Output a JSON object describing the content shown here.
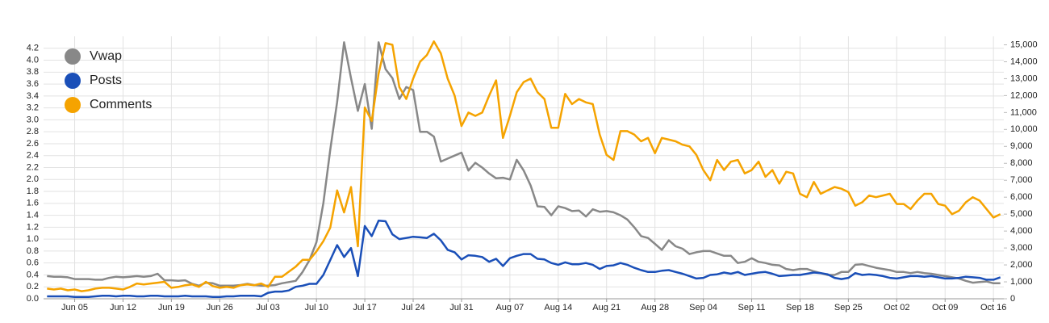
{
  "chart_data": {
    "type": "line",
    "categories": [
      null,
      null,
      null,
      null,
      "Jun 05",
      null,
      null,
      null,
      null,
      null,
      null,
      "Jun 12",
      null,
      null,
      null,
      null,
      null,
      null,
      "Jun 19",
      null,
      null,
      null,
      null,
      null,
      null,
      "Jun 26",
      null,
      null,
      null,
      null,
      null,
      null,
      "Jul 03",
      null,
      null,
      null,
      null,
      null,
      null,
      "Jul 10",
      null,
      null,
      null,
      null,
      null,
      null,
      "Jul 17",
      null,
      null,
      null,
      null,
      null,
      null,
      "Jul 24",
      null,
      null,
      null,
      null,
      null,
      null,
      "Jul 31",
      null,
      null,
      null,
      null,
      null,
      null,
      "Aug 07",
      null,
      null,
      null,
      null,
      null,
      null,
      "Aug 14",
      null,
      null,
      null,
      null,
      null,
      null,
      "Aug 21",
      null,
      null,
      null,
      null,
      null,
      null,
      "Aug 28",
      null,
      null,
      null,
      null,
      null,
      null,
      "Sep 04",
      null,
      null,
      null,
      null,
      null,
      null,
      "Sep 11",
      null,
      null,
      null,
      null,
      null,
      null,
      "Sep 18",
      null,
      null,
      null,
      null,
      null,
      null,
      "Sep 25",
      null,
      null,
      null,
      null,
      null,
      null,
      "Oct 02",
      null,
      null,
      null,
      null,
      null,
      null,
      "Oct 09",
      null,
      null,
      null,
      null,
      null,
      null,
      "Oct 16",
      null
    ],
    "series": [
      {
        "name": "Vwap",
        "color": "#888888",
        "values": [
          0.38,
          0.37,
          0.37,
          0.36,
          0.33,
          0.33,
          0.33,
          0.32,
          0.32,
          0.35,
          0.37,
          0.36,
          0.37,
          0.38,
          0.37,
          0.38,
          0.42,
          0.31,
          0.31,
          0.3,
          0.31,
          0.25,
          0.22,
          0.27,
          0.26,
          0.22,
          0.22,
          0.22,
          0.23,
          0.25,
          0.23,
          0.22,
          0.22,
          0.23,
          0.26,
          0.28,
          0.3,
          0.45,
          0.65,
          0.95,
          1.6,
          2.5,
          3.3,
          4.3,
          3.7,
          3.15,
          3.6,
          2.85,
          4.3,
          3.85,
          3.7,
          3.35,
          3.55,
          3.5,
          2.8,
          2.8,
          2.72,
          2.3,
          2.35,
          2.4,
          2.45,
          2.15,
          2.28,
          2.2,
          2.1,
          2.02,
          2.03,
          2.0,
          2.33,
          2.15,
          1.9,
          1.55,
          1.54,
          1.4,
          1.55,
          1.52,
          1.47,
          1.48,
          1.38,
          1.5,
          1.46,
          1.47,
          1.45,
          1.4,
          1.33,
          1.2,
          1.05,
          1.02,
          0.92,
          0.82,
          0.98,
          0.88,
          0.84,
          0.75,
          0.78,
          0.8,
          0.8,
          0.76,
          0.72,
          0.72,
          0.6,
          0.62,
          0.68,
          0.62,
          0.6,
          0.57,
          0.56,
          0.5,
          0.48,
          0.5,
          0.5,
          0.46,
          0.43,
          0.4,
          0.4,
          0.45,
          0.45,
          0.57,
          0.58,
          0.55,
          0.52,
          0.5,
          0.48,
          0.45,
          0.45,
          0.43,
          0.45,
          0.43,
          0.42,
          0.4,
          0.38,
          0.36,
          0.34,
          0.3,
          0.27,
          0.28,
          0.29,
          0.26,
          0.26
        ]
      },
      {
        "name": "Posts",
        "color": "#1a4fb8",
        "values": [
          0.04,
          0.04,
          0.04,
          0.04,
          0.03,
          0.03,
          0.03,
          0.04,
          0.05,
          0.05,
          0.04,
          0.05,
          0.05,
          0.04,
          0.04,
          0.05,
          0.05,
          0.04,
          0.04,
          0.04,
          0.05,
          0.04,
          0.04,
          0.04,
          0.03,
          0.03,
          0.04,
          0.04,
          0.05,
          0.05,
          0.05,
          0.04,
          0.1,
          0.12,
          0.12,
          0.14,
          0.2,
          0.22,
          0.25,
          0.25,
          0.4,
          0.65,
          0.9,
          0.7,
          0.85,
          0.38,
          1.22,
          1.05,
          1.31,
          1.3,
          1.08,
          1.0,
          1.02,
          1.04,
          1.03,
          1.02,
          1.09,
          0.98,
          0.82,
          0.78,
          0.66,
          0.73,
          0.72,
          0.7,
          0.62,
          0.67,
          0.55,
          0.68,
          0.72,
          0.75,
          0.75,
          0.67,
          0.66,
          0.6,
          0.57,
          0.61,
          0.58,
          0.58,
          0.6,
          0.57,
          0.5,
          0.55,
          0.56,
          0.6,
          0.57,
          0.52,
          0.48,
          0.45,
          0.45,
          0.47,
          0.48,
          0.45,
          0.42,
          0.38,
          0.34,
          0.35,
          0.4,
          0.41,
          0.44,
          0.42,
          0.45,
          0.4,
          0.42,
          0.44,
          0.45,
          0.42,
          0.38,
          0.39,
          0.4,
          0.4,
          0.42,
          0.44,
          0.43,
          0.41,
          0.35,
          0.33,
          0.35,
          0.43,
          0.4,
          0.41,
          0.4,
          0.38,
          0.35,
          0.34,
          0.36,
          0.38,
          0.38,
          0.37,
          0.38,
          0.36,
          0.34,
          0.34,
          0.35,
          0.37,
          0.36,
          0.35,
          0.32,
          0.32,
          0.36
        ]
      },
      {
        "name": "Comments",
        "color": "#f5a300",
        "axis": "y2",
        "values": [
          600,
          550,
          600,
          500,
          550,
          450,
          500,
          600,
          650,
          650,
          600,
          550,
          700,
          900,
          850,
          900,
          950,
          1000,
          650,
          700,
          800,
          850,
          700,
          1000,
          750,
          650,
          700,
          650,
          800,
          850,
          800,
          900,
          700,
          1300,
          1300,
          1600,
          1900,
          2300,
          2300,
          2800,
          3400,
          4200,
          6400,
          5100,
          6600,
          3100,
          11300,
          10500,
          13300,
          15100,
          15000,
          12500,
          11800,
          13000,
          14000,
          14400,
          15200,
          14500,
          13000,
          12000,
          10200,
          11000,
          10800,
          11000,
          12000,
          12900,
          9500,
          10800,
          12200,
          12800,
          13000,
          12200,
          11800,
          10100,
          10100,
          12100,
          11500,
          11800,
          11600,
          11500,
          9700,
          8500,
          8200,
          9900,
          9900,
          9700,
          9300,
          9500,
          8600,
          9500,
          9400,
          9300,
          9100,
          9000,
          8500,
          7600,
          7000,
          8200,
          7600,
          8100,
          8200,
          7400,
          7600,
          8100,
          7200,
          7600,
          6800,
          7500,
          7400,
          6200,
          6000,
          6900,
          6200,
          6400,
          6600,
          6500,
          6300,
          5500,
          5700,
          6100,
          6000,
          6100,
          6200,
          5600,
          5600,
          5300,
          5800,
          6200,
          6200,
          5600,
          5500,
          5000,
          5200,
          5700,
          6000,
          5800,
          5300,
          4800,
          5000
        ]
      }
    ],
    "ylim": [
      0,
      4.4
    ],
    "yticks": [
      {
        "value": 0,
        "label": "0.0"
      },
      0.2,
      0.4,
      0.6,
      0.8,
      {
        "value": 1,
        "label": "1.0"
      },
      1.2,
      1.4,
      1.6,
      1.8,
      {
        "value": 2,
        "label": "2.0"
      },
      2.2,
      2.4,
      2.6,
      2.8,
      {
        "value": 3,
        "label": "3.0"
      },
      3.2,
      3.4,
      3.6,
      3.8,
      {
        "value": 4,
        "label": "4.0"
      },
      4.2
    ],
    "y2lim": [
      0,
      15500
    ],
    "y2ticks": [
      0,
      {
        "value": 1000,
        "label": "1,000"
      },
      {
        "value": 2000,
        "label": "2,000"
      },
      {
        "value": 3000,
        "label": "3,000"
      },
      {
        "value": 4000,
        "label": "4,000"
      },
      {
        "value": 5000,
        "label": "5,000"
      },
      {
        "value": 6000,
        "label": "6,000"
      },
      {
        "value": 7000,
        "label": "7,000"
      },
      {
        "value": 8000,
        "label": "8,000"
      },
      {
        "value": 9000,
        "label": "9,000"
      },
      {
        "value": 10000,
        "label": "10,000"
      },
      {
        "value": 11000,
        "label": "11,000"
      },
      {
        "value": 12000,
        "label": "12,000"
      },
      {
        "value": 13000,
        "label": "13,000"
      },
      {
        "value": 14000,
        "label": "14,000"
      },
      {
        "value": 15000,
        "label": "15,000"
      }
    ],
    "grid": true,
    "legend": "top-left"
  }
}
